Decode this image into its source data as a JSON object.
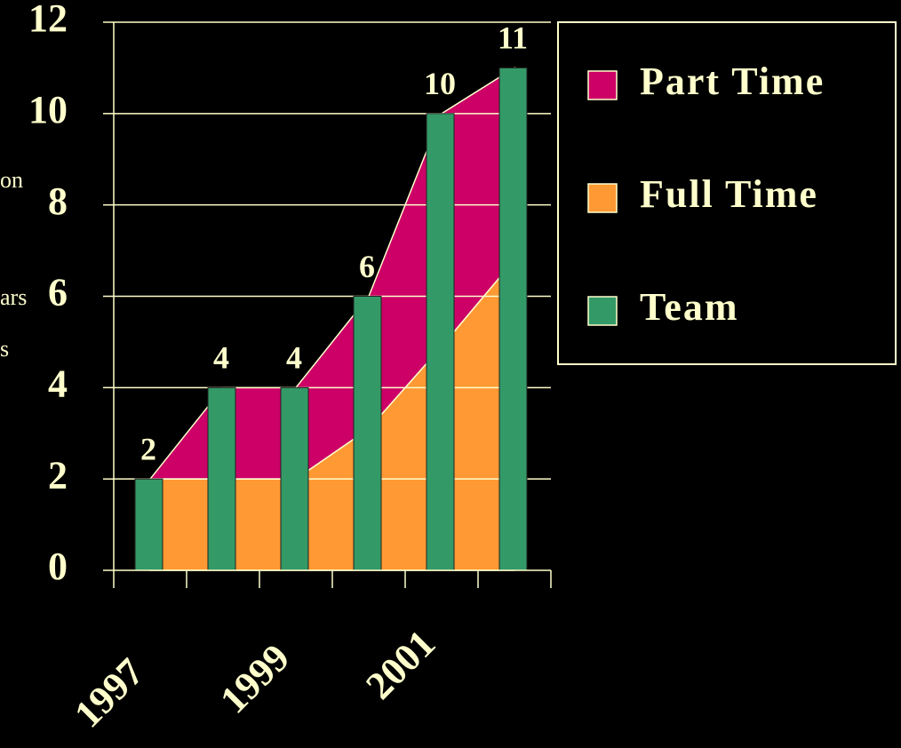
{
  "chart_data": {
    "type": "bar_area",
    "categories": [
      "1997",
      null,
      "1999",
      null,
      "2001",
      null
    ],
    "series": [
      {
        "name": "Part Time",
        "color": "#cc0066",
        "kind": "area",
        "values": [
          0,
          2,
          2,
          2.9,
          5.1,
          4.2
        ]
      },
      {
        "name": "Full Time",
        "color": "#ff9933",
        "kind": "area",
        "values": [
          2,
          2,
          2,
          3.1,
          4.9,
          6.8
        ]
      },
      {
        "name": "Team",
        "color": "#339966",
        "kind": "bar",
        "values": [
          2,
          4,
          4,
          6,
          10,
          11
        ]
      }
    ],
    "ylim": [
      0,
      12
    ],
    "yticks": [
      0,
      2,
      4,
      6,
      8,
      10,
      12
    ],
    "grid": true,
    "annotations": [
      "on",
      "ars",
      "s"
    ],
    "legend": "right"
  }
}
